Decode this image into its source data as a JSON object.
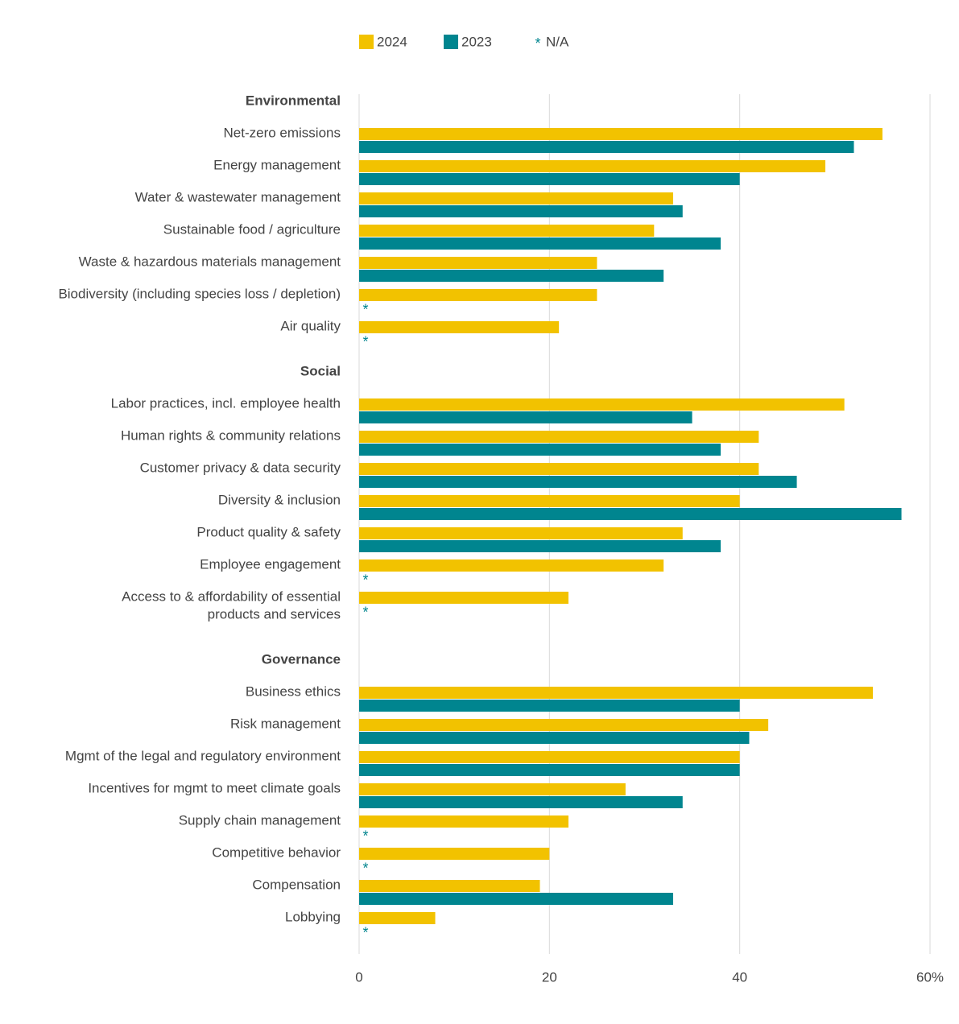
{
  "chart_data": {
    "type": "bar",
    "orientation": "horizontal",
    "series": [
      {
        "name": "2024",
        "color": "#f2c200",
        "values": [
          [
            55,
            49,
            33,
            31,
            25,
            25,
            21
          ],
          [
            51,
            42,
            42,
            40,
            34,
            32,
            22
          ],
          [
            54,
            43,
            40,
            28,
            22,
            20,
            19,
            8
          ]
        ]
      },
      {
        "name": "2023",
        "color": "#00858f",
        "values": [
          [
            52,
            40,
            34,
            38,
            32,
            null,
            null
          ],
          [
            35,
            38,
            46,
            57,
            38,
            null,
            null
          ],
          [
            40,
            41,
            40,
            34,
            null,
            null,
            33,
            null
          ]
        ]
      }
    ],
    "na_symbol": "*",
    "na_label": "N/A",
    "groups": [
      {
        "name": "Environmental",
        "categories": [
          "Net-zero emissions",
          "Energy management",
          "Water & wastewater management",
          "Sustainable food / agriculture",
          "Waste & hazardous materials management",
          "Biodiversity (including species loss / depletion)",
          "Air quality"
        ]
      },
      {
        "name": "Social",
        "categories": [
          "Labor practices, incl. employee health",
          "Human rights & community relations",
          "Customer privacy & data security",
          "Diversity & inclusion",
          "Product quality & safety",
          "Employee engagement",
          [
            "Access to & affordability of essential",
            "products and services"
          ]
        ]
      },
      {
        "name": "Governance",
        "categories": [
          "Business ethics",
          "Risk management",
          "Mgmt of the legal and regulatory environment",
          "Incentives for mgmt to meet climate goals",
          "Supply chain management",
          "Competitive behavior",
          "Compensation",
          "Lobbying"
        ]
      }
    ],
    "xlim": [
      0,
      60
    ],
    "xticks": [
      0,
      20,
      40,
      {
        "value": 60,
        "label": "60%"
      }
    ],
    "grid": true
  }
}
